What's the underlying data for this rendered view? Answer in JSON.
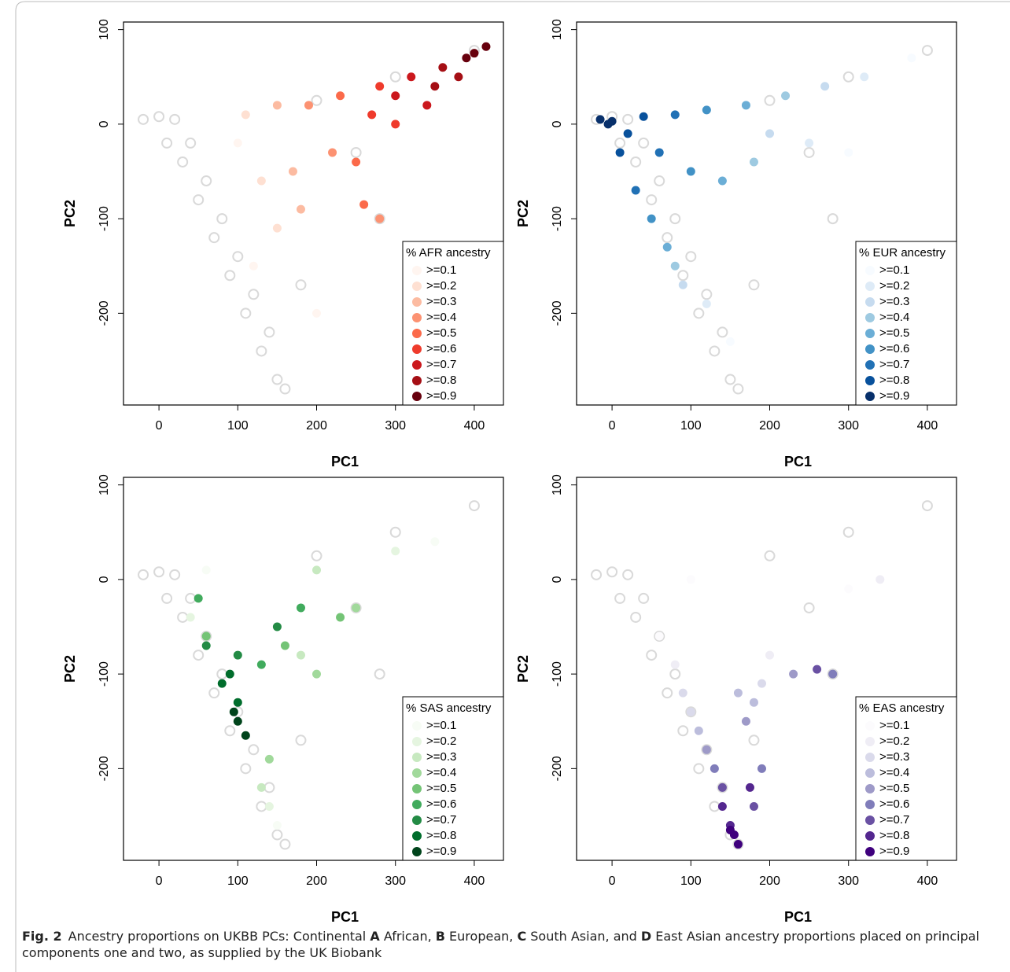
{
  "chart_data": [
    {
      "type": "scatter",
      "xlabel": "PC1",
      "ylabel": "PC2",
      "legend_title": "% AFR ancestry",
      "legend": "bottomright",
      "xlim": [
        -45,
        437
      ],
      "ylim": [
        -297,
        108
      ],
      "xticks": [
        0,
        100,
        200,
        300,
        400
      ],
      "yticks": [
        100,
        0,
        -100,
        -200
      ],
      "series": [
        {
          "color": "#d9d9d9",
          "x": [
            -20,
            0,
            20,
            10,
            30,
            50,
            70,
            90,
            110,
            130,
            150,
            160,
            40,
            60,
            80,
            100,
            120,
            140,
            200,
            300,
            400,
            250,
            280,
            180
          ],
          "y": [
            5,
            8,
            5,
            -20,
            -40,
            -80,
            -120,
            -160,
            -200,
            -240,
            -270,
            -280,
            -20,
            -60,
            -100,
            -140,
            -180,
            -220,
            25,
            50,
            78,
            -30,
            -100,
            -170
          ]
        },
        {
          "name": ">=0.1",
          "color": "#fff5f0",
          "x": [
            100,
            120,
            200
          ],
          "y": [
            -20,
            -150,
            -200
          ]
        },
        {
          "name": ">=0.2",
          "color": "#fee0d2",
          "x": [
            110,
            130,
            150
          ],
          "y": [
            10,
            -60,
            -110
          ]
        },
        {
          "name": ">=0.3",
          "color": "#fcbba1",
          "x": [
            150,
            170,
            180
          ],
          "y": [
            20,
            -50,
            -90
          ]
        },
        {
          "name": ">=0.4",
          "color": "#fc9272",
          "x": [
            190,
            220,
            280
          ],
          "y": [
            20,
            -30,
            -100
          ]
        },
        {
          "name": ">=0.5",
          "color": "#fb6a4a",
          "x": [
            230,
            250,
            260
          ],
          "y": [
            30,
            -40,
            -85
          ]
        },
        {
          "name": ">=0.6",
          "color": "#ef3b2c",
          "x": [
            280,
            300,
            270
          ],
          "y": [
            40,
            0,
            10
          ]
        },
        {
          "name": ">=0.7",
          "color": "#cb181d",
          "x": [
            320,
            340,
            300
          ],
          "y": [
            50,
            20,
            30
          ]
        },
        {
          "name": ">=0.8",
          "color": "#a50f15",
          "x": [
            360,
            380,
            350
          ],
          "y": [
            60,
            50,
            40
          ]
        },
        {
          "name": ">=0.9",
          "color": "#67000d",
          "x": [
            400,
            415,
            390
          ],
          "y": [
            75,
            82,
            70
          ]
        }
      ]
    },
    {
      "type": "scatter",
      "xlabel": "PC1",
      "ylabel": "PC2",
      "legend_title": "% EUR ancestry",
      "legend": "bottomright",
      "xlim": [
        -45,
        437
      ],
      "ylim": [
        -297,
        108
      ],
      "xticks": [
        0,
        100,
        200,
        300,
        400
      ],
      "yticks": [
        100,
        0,
        -100,
        -200
      ],
      "series": [
        {
          "color": "#d9d9d9",
          "x": [
            -20,
            0,
            20,
            10,
            30,
            50,
            70,
            90,
            110,
            130,
            150,
            160,
            40,
            60,
            80,
            100,
            120,
            140,
            200,
            300,
            400,
            250,
            280,
            180
          ],
          "y": [
            5,
            8,
            5,
            -20,
            -40,
            -80,
            -120,
            -160,
            -200,
            -240,
            -270,
            -280,
            -20,
            -60,
            -100,
            -140,
            -180,
            -220,
            25,
            50,
            78,
            -30,
            -100,
            -170
          ]
        },
        {
          "name": ">=0.1",
          "color": "#f7fbff",
          "x": [
            380,
            300,
            150
          ],
          "y": [
            70,
            -30,
            -230
          ]
        },
        {
          "name": ">=0.2",
          "color": "#deebf7",
          "x": [
            320,
            250,
            120
          ],
          "y": [
            50,
            -20,
            -190
          ]
        },
        {
          "name": ">=0.3",
          "color": "#c6dbef",
          "x": [
            270,
            200,
            90
          ],
          "y": [
            40,
            -10,
            -170
          ]
        },
        {
          "name": ">=0.4",
          "color": "#9ecae1",
          "x": [
            220,
            180,
            80
          ],
          "y": [
            30,
            -40,
            -150
          ]
        },
        {
          "name": ">=0.5",
          "color": "#6baed6",
          "x": [
            170,
            140,
            70
          ],
          "y": [
            20,
            -60,
            -130
          ]
        },
        {
          "name": ">=0.6",
          "color": "#4292c6",
          "x": [
            120,
            100,
            50
          ],
          "y": [
            15,
            -50,
            -100
          ]
        },
        {
          "name": ">=0.7",
          "color": "#2171b5",
          "x": [
            80,
            60,
            30
          ],
          "y": [
            10,
            -30,
            -70
          ]
        },
        {
          "name": ">=0.8",
          "color": "#08519c",
          "x": [
            40,
            20,
            10
          ],
          "y": [
            8,
            -10,
            -30
          ]
        },
        {
          "name": ">=0.9",
          "color": "#08306b",
          "x": [
            -15,
            0,
            -5
          ],
          "y": [
            5,
            3,
            0
          ]
        }
      ]
    },
    {
      "type": "scatter",
      "xlabel": "PC1",
      "ylabel": "PC2",
      "legend_title": "% SAS ancestry",
      "legend": "bottomright",
      "xlim": [
        -45,
        437
      ],
      "ylim": [
        -297,
        108
      ],
      "xticks": [
        0,
        100,
        200,
        300,
        400
      ],
      "yticks": [
        100,
        0,
        -100,
        -200
      ],
      "series": [
        {
          "color": "#d9d9d9",
          "x": [
            -20,
            0,
            20,
            10,
            30,
            50,
            70,
            90,
            110,
            130,
            150,
            160,
            40,
            60,
            80,
            100,
            120,
            140,
            200,
            300,
            400,
            250,
            280,
            180
          ],
          "y": [
            5,
            8,
            5,
            -20,
            -40,
            -80,
            -120,
            -160,
            -200,
            -240,
            -270,
            -280,
            -20,
            -60,
            -100,
            -140,
            -180,
            -220,
            25,
            50,
            78,
            -30,
            -100,
            -170
          ]
        },
        {
          "name": ">=0.1",
          "color": "#f7fcf5",
          "x": [
            350,
            60,
            150
          ],
          "y": [
            40,
            10,
            -260
          ]
        },
        {
          "name": ">=0.2",
          "color": "#e5f5e0",
          "x": [
            300,
            40,
            140
          ],
          "y": [
            30,
            -40,
            -240
          ]
        },
        {
          "name": ">=0.3",
          "color": "#c7e9c0",
          "x": [
            200,
            180,
            130
          ],
          "y": [
            10,
            -80,
            -220
          ]
        },
        {
          "name": ">=0.4",
          "color": "#a1d99b",
          "x": [
            250,
            200,
            140
          ],
          "y": [
            -30,
            -100,
            -190
          ]
        },
        {
          "name": ">=0.5",
          "color": "#74c476",
          "x": [
            230,
            160,
            60
          ],
          "y": [
            -40,
            -70,
            -60
          ]
        },
        {
          "name": ">=0.6",
          "color": "#41ab5d",
          "x": [
            180,
            130,
            50
          ],
          "y": [
            -30,
            -90,
            -20
          ]
        },
        {
          "name": ">=0.7",
          "color": "#238b45",
          "x": [
            150,
            100,
            60
          ],
          "y": [
            -50,
            -80,
            -70
          ]
        },
        {
          "name": ">=0.8",
          "color": "#006d2c",
          "x": [
            80,
            100,
            90
          ],
          "y": [
            -110,
            -130,
            -100
          ]
        },
        {
          "name": ">=0.9",
          "color": "#00441b",
          "x": [
            100,
            110,
            95
          ],
          "y": [
            -150,
            -165,
            -140
          ]
        }
      ]
    },
    {
      "type": "scatter",
      "xlabel": "PC1",
      "ylabel": "PC2",
      "legend_title": "% EAS ancestry",
      "legend": "bottomright",
      "xlim": [
        -45,
        437
      ],
      "ylim": [
        -297,
        108
      ],
      "xticks": [
        0,
        100,
        200,
        300,
        400
      ],
      "yticks": [
        100,
        0,
        -100,
        -200
      ],
      "series": [
        {
          "color": "#d9d9d9",
          "x": [
            -20,
            0,
            20,
            10,
            30,
            50,
            70,
            90,
            110,
            130,
            150,
            160,
            40,
            60,
            80,
            100,
            120,
            140,
            200,
            300,
            400,
            250,
            280,
            180
          ],
          "y": [
            5,
            8,
            5,
            -20,
            -40,
            -80,
            -120,
            -160,
            -200,
            -240,
            -270,
            -280,
            -20,
            -60,
            -100,
            -140,
            -180,
            -220,
            25,
            50,
            78,
            -30,
            -100,
            -170
          ]
        },
        {
          "name": ">=0.1",
          "color": "#fcfbfd",
          "x": [
            100,
            300,
            60
          ],
          "y": [
            0,
            -10,
            -60
          ]
        },
        {
          "name": ">=0.2",
          "color": "#efedf5",
          "x": [
            200,
            340,
            80
          ],
          "y": [
            -80,
            0,
            -90
          ]
        },
        {
          "name": ">=0.3",
          "color": "#dadaeb",
          "x": [
            190,
            100,
            90
          ],
          "y": [
            -110,
            -140,
            -120
          ]
        },
        {
          "name": ">=0.4",
          "color": "#bcbddc",
          "x": [
            110,
            160,
            180
          ],
          "y": [
            -160,
            -120,
            -130
          ]
        },
        {
          "name": ">=0.5",
          "color": "#9e9ac8",
          "x": [
            230,
            120,
            170
          ],
          "y": [
            -100,
            -180,
            -150
          ]
        },
        {
          "name": ">=0.6",
          "color": "#807dba",
          "x": [
            280,
            130,
            190
          ],
          "y": [
            -100,
            -200,
            -200
          ]
        },
        {
          "name": ">=0.7",
          "color": "#6a51a3",
          "x": [
            260,
            140,
            180
          ],
          "y": [
            -95,
            -220,
            -240
          ]
        },
        {
          "name": ">=0.8",
          "color": "#54278f",
          "x": [
            140,
            150,
            175
          ],
          "y": [
            -240,
            -260,
            -220
          ]
        },
        {
          "name": ">=0.9",
          "color": "#3f007d",
          "x": [
            155,
            160,
            150
          ],
          "y": [
            -270,
            -280,
            -265
          ]
        }
      ]
    }
  ],
  "caption": {
    "label": "Fig. 2",
    "parts": [
      {
        "text": "Ancestry proportions on UKBB PCs: Continental ",
        "bold": false
      },
      {
        "text": "A",
        "bold": true
      },
      {
        "text": " African, ",
        "bold": false
      },
      {
        "text": "B",
        "bold": true
      },
      {
        "text": " European, ",
        "bold": false
      },
      {
        "text": "C",
        "bold": true
      },
      {
        "text": " South Asian, and ",
        "bold": false
      },
      {
        "text": "D",
        "bold": true
      },
      {
        "text": " East Asian ancestry proportions placed on principal components one and two, as supplied by the UK Biobank",
        "bold": false
      }
    ]
  }
}
